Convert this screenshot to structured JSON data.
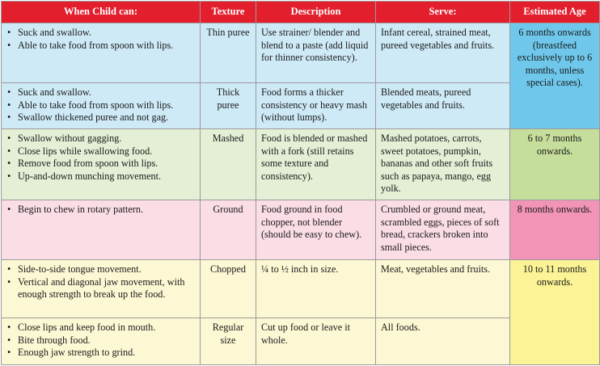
{
  "headers": [
    "When Child can:",
    "Texture",
    "Description",
    "Serve:",
    "Estimated Age"
  ],
  "rows": [
    {
      "abilities": [
        "Suck and swallow.",
        "Able to take food from spoon with lips."
      ],
      "texture": "Thin puree",
      "description": "Use strainer/ blender and blend to a paste (add liquid for thinner consistency).",
      "serve": "Infant cereal, strained meat, pureed vegetables and fruits."
    },
    {
      "abilities": [
        "Suck and swallow.",
        "Able to take food from spoon with lips.",
        "Swallow thickened puree and not gag."
      ],
      "texture": "Thick puree",
      "description": "Food forms a thicker consistency or heavy mash (without lumps).",
      "serve": "Blended meats, pureed vegetables and fruits."
    },
    {
      "abilities": [
        "Swallow without gagging.",
        "Close lips while swallowing food.",
        "Remove food from spoon with lips.",
        "Up-and-down munching movement."
      ],
      "texture": "Mashed",
      "description": "Food is blended or mashed with a fork (still retains some texture and consistency).",
      "serve": "Mashed potatoes, carrots, sweet potatoes, pumpkin, bananas and other soft fruits such as papaya, mango, egg yolk."
    },
    {
      "abilities": [
        "Begin to chew in rotary pattern."
      ],
      "texture": "Ground",
      "description": "Food ground in food chopper, not blender (should be easy to chew).",
      "serve": "Crumbled or ground meat, scrambled eggs, pieces of soft bread, crackers broken into small pieces."
    },
    {
      "abilities": [
        "Side-to-side tongue movement.",
        "Vertical and diagonal jaw movement, with enough strength to break up the food."
      ],
      "texture": "Chopped",
      "description": "¼ to ½ inch in size.",
      "serve": "Meat, vegetables and fruits."
    },
    {
      "abilities": [
        "Close lips and keep food in mouth.",
        "Bite through food.",
        "Enough jaw strength to grind."
      ],
      "texture": "Regular size",
      "description": "Cut up food or leave it whole.",
      "serve": "All foods."
    }
  ],
  "ages": [
    "6 months onwards (breastfeed exclusively up to 6 months, unless special cases).",
    "6 to 7 months onwards.",
    "8 months onwards.",
    "10 to 11 months onwards."
  ],
  "colors": {
    "header": "#e31e2d",
    "blue_row": "#cfeaf7",
    "blue_age": "#6fc8ec",
    "green_row": "#e4efd6",
    "green_age": "#c6de9b",
    "pink_row": "#fbdde6",
    "pink_age": "#f294b7",
    "yellow_row": "#fdf8d4",
    "yellow_age": "#fbf395"
  }
}
